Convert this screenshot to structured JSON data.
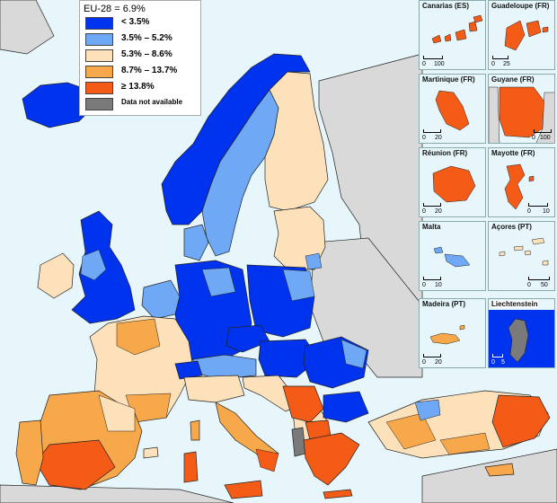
{
  "legend": {
    "title": "EU-28 = 6.9%",
    "classes": [
      {
        "label": "< 3.5%",
        "color": "#0033ee"
      },
      {
        "label": "3.5% – 5.2%",
        "color": "#6fa8f4"
      },
      {
        "label": "5.3% – 8.6%",
        "color": "#fde1bb"
      },
      {
        "label": "8.7% – 13.7%",
        "color": "#f7a84b"
      },
      {
        "label": "≥ 13.8%",
        "color": "#f35b17"
      },
      {
        "label": "Data not available",
        "color": "#7a7a7a"
      }
    ]
  },
  "colors": {
    "sea": "#e6f6fb",
    "non_eu_land": "#d9d9d9",
    "border": "#222222",
    "low": "#0033ee",
    "mid_low": "#6fa8f4",
    "mid": "#fde1bb",
    "mid_high": "#f7a84b",
    "high": "#f35b17",
    "na": "#7a7a7a"
  },
  "insets": [
    {
      "name": "Canarias (ES)",
      "scale": [
        "0",
        "100"
      ]
    },
    {
      "name": "Guadeloupe (FR)",
      "scale": [
        "0",
        "25"
      ]
    },
    {
      "name": "Martinique (FR)",
      "scale": [
        "0",
        "20"
      ]
    },
    {
      "name": "Guyane (FR)",
      "scale": [
        "0",
        "100"
      ]
    },
    {
      "name": "Réunion (FR)",
      "scale": [
        "0",
        "20"
      ]
    },
    {
      "name": "Mayotte (FR)",
      "scale": [
        "0",
        "10"
      ]
    },
    {
      "name": "Malta",
      "scale": [
        "0",
        "10"
      ]
    },
    {
      "name": "Açores (PT)",
      "scale": [
        "0",
        "50"
      ]
    },
    {
      "name": "Madeira (PT)",
      "scale": [
        "0",
        "20"
      ]
    },
    {
      "name": "Liechtenstein",
      "scale": [
        "0",
        "5"
      ]
    }
  ]
}
